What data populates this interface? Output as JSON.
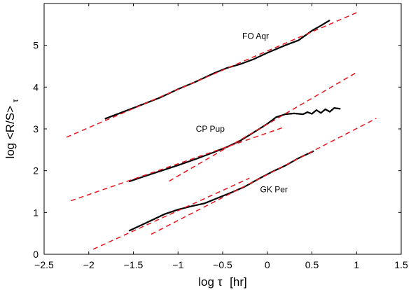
{
  "chart_data": {
    "type": "line",
    "xlabel_main": "log τ",
    "xlabel_unit": "[hr]",
    "ylabel_main": "log <R/S>",
    "ylabel_sub": "τ",
    "xlim": [
      -2.5,
      1.5
    ],
    "ylim": [
      0,
      6
    ],
    "xticks": [
      -2.5,
      -2,
      -1.5,
      -1,
      -0.5,
      0,
      0.5,
      1,
      1.5
    ],
    "xtick_labels": [
      "−2.5",
      "−2",
      "−1.5",
      "−1",
      "−0.5",
      "0",
      "0.5",
      "1",
      "1.5"
    ],
    "yticks": [
      0,
      1,
      2,
      3,
      4,
      5
    ],
    "ytick_labels": [
      "0",
      "1",
      "2",
      "3",
      "4",
      "5"
    ],
    "grid": false,
    "colors": {
      "data": "#000000",
      "fit": "#e8161c",
      "axis": "#000000"
    },
    "annotations": [
      {
        "text": "FO Aqr",
        "x": -0.28,
        "y": 5.15
      },
      {
        "text": "CP Pup",
        "x": -0.8,
        "y": 2.93
      },
      {
        "text": "GK Per",
        "x": -0.08,
        "y": 1.48
      }
    ],
    "series": [
      {
        "style": "solid",
        "points": [
          [
            -1.82,
            3.24
          ],
          [
            -1.5,
            3.5
          ],
          [
            -1.2,
            3.75
          ],
          [
            -1.0,
            3.95
          ],
          [
            -0.8,
            4.13
          ],
          [
            -0.6,
            4.33
          ],
          [
            -0.45,
            4.46
          ],
          [
            -0.3,
            4.55
          ],
          [
            -0.15,
            4.67
          ],
          [
            0.0,
            4.82
          ],
          [
            0.2,
            5.0
          ],
          [
            0.35,
            5.12
          ],
          [
            0.5,
            5.35
          ],
          [
            0.6,
            5.47
          ],
          [
            0.7,
            5.6
          ]
        ]
      },
      {
        "style": "solid",
        "points": [
          [
            -1.55,
            1.74
          ],
          [
            -1.3,
            1.92
          ],
          [
            -1.0,
            2.13
          ],
          [
            -0.8,
            2.28
          ],
          [
            -0.6,
            2.44
          ],
          [
            -0.45,
            2.57
          ],
          [
            -0.3,
            2.72
          ],
          [
            -0.15,
            2.92
          ],
          [
            0.0,
            3.12
          ],
          [
            0.1,
            3.28
          ],
          [
            0.2,
            3.35
          ],
          [
            0.3,
            3.37
          ],
          [
            0.4,
            3.35
          ],
          [
            0.45,
            3.4
          ],
          [
            0.5,
            3.36
          ],
          [
            0.55,
            3.45
          ],
          [
            0.6,
            3.38
          ],
          [
            0.65,
            3.47
          ],
          [
            0.7,
            3.41
          ],
          [
            0.75,
            3.5
          ],
          [
            0.82,
            3.48
          ]
        ]
      },
      {
        "style": "solid",
        "points": [
          [
            -1.55,
            0.56
          ],
          [
            -1.35,
            0.76
          ],
          [
            -1.15,
            0.96
          ],
          [
            -1.0,
            1.07
          ],
          [
            -0.85,
            1.15
          ],
          [
            -0.7,
            1.22
          ],
          [
            -0.55,
            1.35
          ],
          [
            -0.4,
            1.48
          ],
          [
            -0.25,
            1.62
          ],
          [
            -0.1,
            1.8
          ],
          [
            0.05,
            1.97
          ],
          [
            0.2,
            2.12
          ],
          [
            0.35,
            2.3
          ],
          [
            0.52,
            2.47
          ]
        ]
      },
      {
        "style": "dashed",
        "points": [
          [
            -2.25,
            2.8
          ],
          [
            1.0,
            5.78
          ]
        ]
      },
      {
        "style": "dashed",
        "points": [
          [
            -2.2,
            1.28
          ],
          [
            0.2,
            3.05
          ]
        ]
      },
      {
        "style": "dashed",
        "points": [
          [
            -1.1,
            1.75
          ],
          [
            1.0,
            4.35
          ]
        ]
      },
      {
        "style": "dashed",
        "points": [
          [
            -1.95,
            0.12
          ],
          [
            -0.2,
            1.82
          ]
        ]
      },
      {
        "style": "dashed",
        "points": [
          [
            -1.3,
            0.48
          ],
          [
            1.22,
            3.25
          ]
        ]
      }
    ]
  }
}
